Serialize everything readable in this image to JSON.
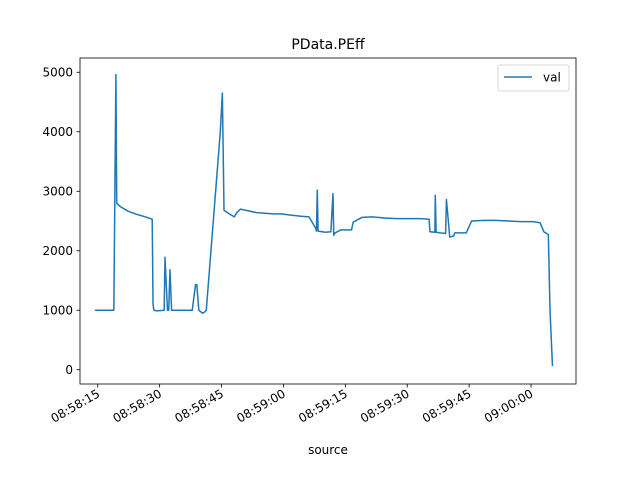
{
  "chart_data": {
    "type": "line",
    "title": "PData.PEff",
    "xlabel": "source",
    "ylabel": "",
    "x_tick_labels": [
      "08:58:15",
      "08:58:30",
      "08:58:45",
      "08:59:00",
      "08:59:15",
      "08:59:30",
      "08:59:45",
      "09:00:00"
    ],
    "y_ticks": [
      0,
      1000,
      2000,
      3000,
      4000,
      5000
    ],
    "xlim": [
      "08:58:10.7",
      "09:00:10.9"
    ],
    "ylim": [
      -240,
      5240
    ],
    "grid": false,
    "legend_position": "upper right",
    "colors": {
      "series": "#1f77b4",
      "axes": "#000000"
    },
    "series": [
      {
        "name": "val",
        "x": [
          "08:58:14.3",
          "08:58:18.0",
          "08:58:18.9",
          "08:58:19.4",
          "08:58:19.6",
          "08:58:20.5",
          "08:58:22.5",
          "08:58:24.5",
          "08:58:26.5",
          "08:58:28.2",
          "08:58:28.4",
          "08:58:28.6",
          "08:58:29.2",
          "08:58:31.1",
          "08:58:31.3",
          "08:58:31.9",
          "08:58:32.2",
          "08:58:32.5",
          "08:58:32.9",
          "08:58:33.2",
          "08:58:35.6",
          "08:58:37.9",
          "08:58:38.7",
          "08:58:39.0",
          "08:58:39.5",
          "08:58:40.4",
          "08:58:40.9",
          "08:58:41.3",
          "08:58:42.8",
          "08:58:44.7",
          "08:58:45.2",
          "08:58:45.6",
          "08:58:47.1",
          "08:58:48.1",
          "08:58:48.7",
          "08:58:49.6",
          "08:58:51.5",
          "08:58:53.5",
          "08:58:55.5",
          "08:58:57.5",
          "08:58:59.5",
          "08:59:01.5",
          "08:59:04.3",
          "08:59:06.2",
          "08:59:07.8",
          "08:59:08.0",
          "08:59:08.2",
          "08:59:08.4",
          "08:59:10.2",
          "08:59:11.5",
          "08:59:12.0",
          "08:59:12.2",
          "08:59:12.5",
          "08:59:13.9",
          "08:59:14.1",
          "08:59:16.5",
          "08:59:16.9",
          "08:59:19.0",
          "08:59:21.5",
          "08:59:24.5",
          "08:59:27.5",
          "08:59:30.5",
          "08:59:33.3",
          "08:59:35.3",
          "08:59:35.5",
          "08:59:36.7",
          "08:59:36.8",
          "08:59:37.0",
          "08:59:38.0",
          "08:59:39.3",
          "08:59:39.5",
          "08:59:40.3",
          "08:59:41.3",
          "08:59:41.5",
          "08:59:43.1",
          "08:59:44.3",
          "08:59:45.6",
          "08:59:48.5",
          "08:59:51.5",
          "08:59:54.5",
          "08:59:57.5",
          "09:00:00.5",
          "09:00:02.2",
          "09:00:03.1",
          "09:00:04.2",
          "09:00:04.6",
          "09:00:05.2"
        ],
        "y": [
          1000,
          1000,
          1000,
          4960,
          2800,
          2740,
          2660,
          2610,
          2570,
          2530,
          1100,
          1000,
          990,
          1000,
          1890,
          1000,
          1000,
          1680,
          1000,
          1000,
          1000,
          1000,
          1430,
          1430,
          1000,
          950,
          970,
          1000,
          2320,
          4000,
          4650,
          2680,
          2610,
          2570,
          2640,
          2700,
          2670,
          2640,
          2630,
          2620,
          2620,
          2600,
          2580,
          2570,
          2380,
          2330,
          3020,
          2330,
          2310,
          2320,
          2960,
          2260,
          2300,
          2350,
          2350,
          2350,
          2480,
          2560,
          2570,
          2550,
          2540,
          2540,
          2540,
          2530,
          2320,
          2310,
          2930,
          2310,
          2300,
          2290,
          2860,
          2230,
          2250,
          2300,
          2300,
          2300,
          2500,
          2510,
          2510,
          2500,
          2490,
          2490,
          2470,
          2320,
          2270,
          1000,
          60
        ]
      }
    ]
  }
}
